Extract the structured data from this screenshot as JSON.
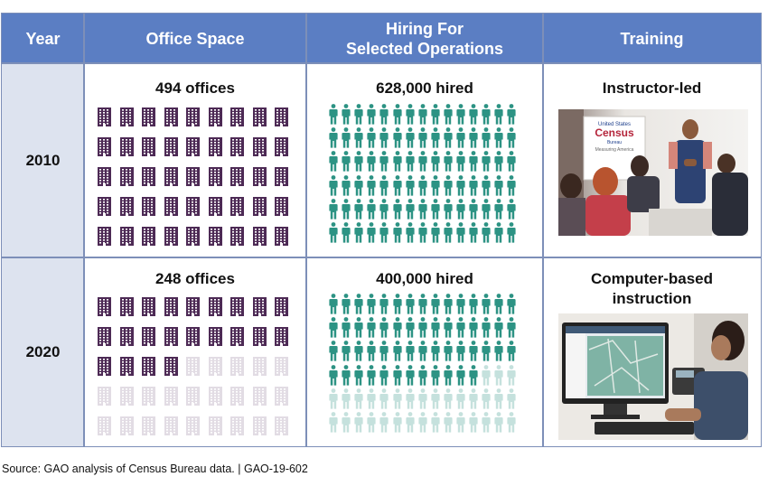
{
  "header": {
    "year": "Year",
    "office_space": "Office Space",
    "hiring_line1": "Hiring For",
    "hiring_line2": "Selected Operations",
    "training": "Training"
  },
  "rows": [
    {
      "year": "2010",
      "offices_label": "494 offices",
      "offices_filled": 45,
      "offices_total": 45,
      "hired_label": "628,000 hired",
      "people_filled": 90,
      "people_total": 90,
      "training_label": "Instructor-led",
      "training_label2": "",
      "photo_banner_line1": "United States",
      "photo_banner_line2": "Census",
      "photo_banner_line3": "Bureau",
      "photo_banner_line4": "Measuring America"
    },
    {
      "year": "2020",
      "offices_label": "248 offices",
      "offices_filled": 22,
      "offices_total": 45,
      "hired_label": "400,000 hired",
      "people_filled": 57,
      "people_total": 90,
      "training_label": "Computer-based",
      "training_label2": "instruction"
    }
  ],
  "colors": {
    "header_bg": "#5b7ec3",
    "year_bg": "#dde3ef",
    "building_filled": "#4d2a55",
    "building_faded": "#e2dce4",
    "person_filled": "#2d9384",
    "person_faded": "#c5e1dd",
    "border": "#7d8fb8"
  },
  "source": "Source: GAO analysis of Census Bureau data.  |  GAO-19-602"
}
